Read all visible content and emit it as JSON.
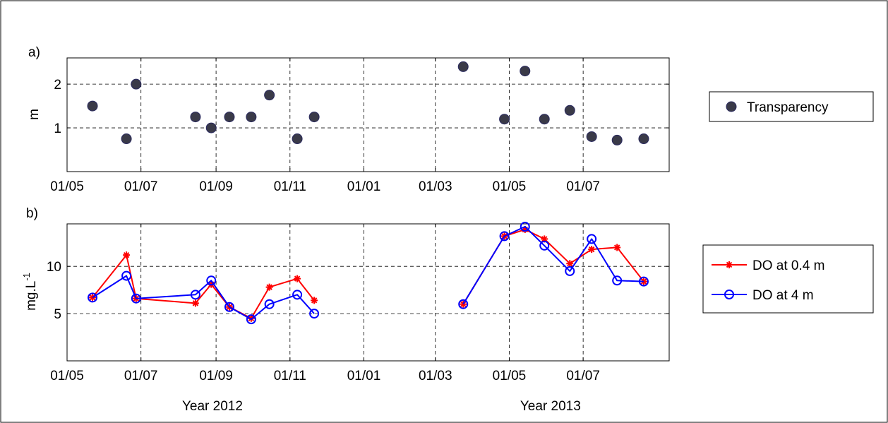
{
  "chart_data": [
    {
      "type": "scatter",
      "panel_label": "a)",
      "ylabel": "m",
      "ylim": [
        0,
        2.6
      ],
      "yticks": [
        1,
        2
      ],
      "xlim": [
        "2012-05-01",
        "2013-09-10"
      ],
      "xtick_labels": [
        "01/05",
        "01/07",
        "01/09",
        "01/11",
        "01/01",
        "01/03",
        "01/05",
        "01/07"
      ],
      "xtick_dates": [
        "2012-05-01",
        "2012-07-01",
        "2012-09-01",
        "2012-11-01",
        "2013-01-01",
        "2013-03-01",
        "2013-05-01",
        "2013-07-01"
      ],
      "grid": true,
      "legend_position": "right",
      "series": [
        {
          "name": "Transparency",
          "color": "#3a3a48",
          "marker": "filled-circle",
          "x": [
            "2012-05-22",
            "2012-06-19",
            "2012-06-27",
            "2012-08-15",
            "2012-08-28",
            "2012-09-12",
            "2012-09-30",
            "2012-10-15",
            "2012-11-07",
            "2012-11-21",
            "2013-03-24",
            "2013-04-27",
            "2013-05-14",
            "2013-05-30",
            "2013-06-20",
            "2013-07-08",
            "2013-07-29",
            "2013-08-20"
          ],
          "y": [
            1.5,
            0.75,
            2.0,
            1.25,
            1.0,
            1.25,
            1.25,
            1.75,
            0.75,
            1.25,
            2.4,
            1.2,
            2.3,
            1.2,
            1.4,
            0.8,
            0.72,
            0.75
          ]
        }
      ]
    },
    {
      "type": "line",
      "panel_label": "b)",
      "ylabel_base": "mg.L",
      "ylabel_exp": "-1",
      "ylim": [
        0,
        14.5
      ],
      "yticks": [
        5,
        10
      ],
      "xlim": [
        "2012-05-01",
        "2013-09-10"
      ],
      "xtick_labels": [
        "01/05",
        "01/07",
        "01/09",
        "01/11",
        "01/01",
        "01/03",
        "01/05",
        "01/07"
      ],
      "xtick_dates": [
        "2012-05-01",
        "2012-07-01",
        "2012-09-01",
        "2012-11-01",
        "2013-01-01",
        "2013-03-01",
        "2013-05-01",
        "2013-07-01"
      ],
      "year_labels": [
        {
          "text": "Year 2012",
          "date": "2012-08-29"
        },
        {
          "text": "Year 2013",
          "date": "2013-06-04"
        }
      ],
      "grid": true,
      "legend_position": "right",
      "series": [
        {
          "name": "DO at 0.4 m",
          "color": "#ff0000",
          "marker": "star",
          "segments": [
            {
              "x": [
                "2012-05-22",
                "2012-06-19",
                "2012-06-27",
                "2012-08-15",
                "2012-08-28",
                "2012-09-12",
                "2012-09-30",
                "2012-10-15",
                "2012-11-07",
                "2012-11-21"
              ],
              "y": [
                6.7,
                11.2,
                6.6,
                6.1,
                8.1,
                5.7,
                4.5,
                7.8,
                8.7,
                6.4
              ]
            },
            {
              "x": [
                "2013-03-24",
                "2013-04-27",
                "2013-05-14",
                "2013-05-30",
                "2013-06-20",
                "2013-07-08",
                "2013-07-29",
                "2013-08-20"
              ],
              "y": [
                6.0,
                13.2,
                13.9,
                12.9,
                10.3,
                11.8,
                12.0,
                8.4
              ]
            }
          ]
        },
        {
          "name": "DO at 4 m",
          "color": "#0000ff",
          "marker": "open-circle",
          "segments": [
            {
              "x": [
                "2012-05-22",
                "2012-06-19",
                "2012-06-27",
                "2012-08-15",
                "2012-08-28",
                "2012-09-12",
                "2012-09-30",
                "2012-10-15",
                "2012-11-07",
                "2012-11-21"
              ],
              "y": [
                6.7,
                9.0,
                6.6,
                7.0,
                8.5,
                5.7,
                4.4,
                6.0,
                7.0,
                5.0
              ]
            },
            {
              "x": [
                "2013-03-24",
                "2013-04-27",
                "2013-05-14",
                "2013-05-30",
                "2013-06-20",
                "2013-07-08",
                "2013-07-29",
                "2013-08-20"
              ],
              "y": [
                6.0,
                13.2,
                14.2,
                12.2,
                9.5,
                12.9,
                8.5,
                8.4
              ]
            }
          ]
        }
      ]
    }
  ]
}
